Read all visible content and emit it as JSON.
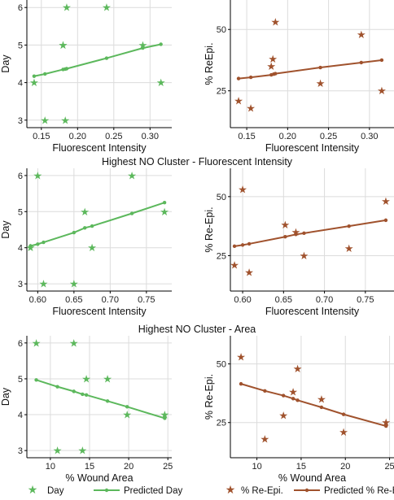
{
  "colors": {
    "green": "#5cb85c",
    "brown": "#a0522d",
    "grid": "#dcdcdc",
    "axis": "#000000"
  },
  "row_titles": [
    "",
    "Highest NO Cluster - Fluorescent Intensity",
    "Highest NO Cluster - Area"
  ],
  "legend": {
    "left": {
      "marker_label": "Day",
      "line_label": "Predicted Day"
    },
    "right": {
      "marker_label": "% Re-Epi.",
      "line_label": "Predicted % Re-Epi."
    }
  },
  "chart_data": [
    {
      "type": "scatter",
      "title": "",
      "xlabel": "Fluorescent Intensity",
      "ylabel": "Day",
      "xlim": [
        0.13,
        0.33
      ],
      "ylim": [
        2.8,
        6.2
      ],
      "xticks": [
        0.15,
        0.2,
        0.25,
        0.3
      ],
      "xtick_labels": [
        "0.15",
        "0.20",
        "0.25",
        "0.30"
      ],
      "yticks": [
        3,
        4,
        5,
        6
      ],
      "ytick_labels": [
        "3",
        "4",
        "5",
        "6"
      ],
      "marker": "star",
      "color": "green",
      "series": [
        {
          "kind": "points",
          "x": [
            0.14,
            0.155,
            0.18,
            0.183,
            0.185,
            0.24,
            0.29,
            0.315,
            0.18
          ],
          "y": [
            4,
            3,
            5,
            3,
            6,
            6,
            5,
            4,
            5
          ]
        },
        {
          "kind": "line",
          "x": [
            0.14,
            0.155,
            0.18,
            0.183,
            0.185,
            0.24,
            0.29,
            0.315
          ],
          "y": [
            4.17,
            4.23,
            4.35,
            4.36,
            4.37,
            4.65,
            4.92,
            5.02
          ]
        }
      ]
    },
    {
      "type": "scatter",
      "title": "",
      "xlabel": "Fluorescent Intensity",
      "ylabel": "% ReEpi.",
      "xlim": [
        0.13,
        0.33
      ],
      "ylim": [
        10,
        62
      ],
      "xticks": [
        0.15,
        0.2,
        0.25,
        0.3
      ],
      "xtick_labels": [
        "0.15",
        "0.20",
        "0.25",
        "0.30"
      ],
      "yticks": [
        25,
        50
      ],
      "ytick_labels": [
        "25",
        "50"
      ],
      "marker": "star",
      "color": "brown",
      "series": [
        {
          "kind": "points",
          "x": [
            0.14,
            0.155,
            0.18,
            0.182,
            0.185,
            0.24,
            0.29,
            0.315
          ],
          "y": [
            21,
            18,
            35,
            38,
            53,
            28,
            48,
            25
          ]
        },
        {
          "kind": "line",
          "x": [
            0.14,
            0.155,
            0.18,
            0.183,
            0.185,
            0.24,
            0.29,
            0.315
          ],
          "y": [
            30,
            30.5,
            31.5,
            31.8,
            32,
            34.5,
            36.5,
            37.5
          ]
        }
      ]
    },
    {
      "type": "scatter",
      "title": "",
      "xlabel": "Fluorescent Intensity",
      "ylabel": "Day",
      "xlim": [
        0.585,
        0.785
      ],
      "ylim": [
        2.8,
        6.2
      ],
      "xticks": [
        0.6,
        0.65,
        0.7,
        0.75
      ],
      "xtick_labels": [
        "0.60",
        "0.65",
        "0.70",
        "0.75"
      ],
      "yticks": [
        3,
        4,
        5,
        6
      ],
      "ytick_labels": [
        "3",
        "4",
        "5",
        "6"
      ],
      "marker": "star",
      "color": "green",
      "series": [
        {
          "kind": "points",
          "x": [
            0.59,
            0.6,
            0.608,
            0.65,
            0.665,
            0.675,
            0.73,
            0.775
          ],
          "y": [
            4,
            6,
            3,
            3,
            5,
            4,
            6,
            5
          ]
        },
        {
          "kind": "line",
          "x": [
            0.59,
            0.6,
            0.608,
            0.65,
            0.665,
            0.675,
            0.73,
            0.775
          ],
          "y": [
            4.05,
            4.1,
            4.15,
            4.42,
            4.55,
            4.6,
            4.95,
            5.25
          ]
        }
      ]
    },
    {
      "type": "scatter",
      "title": "",
      "xlabel": "Fluorescent Intensity",
      "ylabel": "% Re-Epi.",
      "xlim": [
        0.585,
        0.785
      ],
      "ylim": [
        10,
        62
      ],
      "xticks": [
        0.6,
        0.65,
        0.7,
        0.75
      ],
      "xtick_labels": [
        "0.60",
        "0.65",
        "0.70",
        "0.75"
      ],
      "yticks": [
        25,
        50
      ],
      "ytick_labels": [
        "25",
        "50"
      ],
      "marker": "star",
      "color": "brown",
      "series": [
        {
          "kind": "points",
          "x": [
            0.59,
            0.6,
            0.608,
            0.652,
            0.665,
            0.675,
            0.73,
            0.775
          ],
          "y": [
            21,
            53,
            18,
            38,
            35,
            25,
            28,
            48
          ]
        },
        {
          "kind": "line",
          "x": [
            0.59,
            0.6,
            0.608,
            0.652,
            0.665,
            0.675,
            0.73,
            0.775
          ],
          "y": [
            29,
            29.5,
            30,
            33,
            34,
            34.5,
            37.5,
            40
          ]
        }
      ]
    },
    {
      "type": "scatter",
      "title": "",
      "xlabel": "% Wound Area",
      "ylabel": "Day",
      "xlim": [
        7,
        25.5
      ],
      "ylim": [
        2.8,
        6.2
      ],
      "xticks": [
        10,
        15,
        20,
        25
      ],
      "xtick_labels": [
        "10",
        "15",
        "20",
        "25"
      ],
      "yticks": [
        3,
        4,
        5,
        6
      ],
      "ytick_labels": [
        "3",
        "4",
        "5",
        "6"
      ],
      "marker": "star",
      "color": "green",
      "series": [
        {
          "kind": "points",
          "x": [
            8.2,
            10.9,
            13.0,
            14.1,
            14.6,
            17.3,
            19.8,
            24.6
          ],
          "y": [
            6,
            3,
            6,
            3,
            5,
            5,
            4,
            4
          ]
        },
        {
          "kind": "line",
          "x": [
            8.2,
            10.9,
            13.0,
            14.1,
            14.6,
            17.3,
            19.8,
            24.6
          ],
          "y": [
            4.97,
            4.78,
            4.65,
            4.57,
            4.55,
            4.38,
            4.22,
            3.9
          ]
        }
      ]
    },
    {
      "type": "scatter",
      "title": "",
      "xlabel": "% Wound Area",
      "ylabel": "% Re-Epi.",
      "xlim": [
        7,
        25.5
      ],
      "ylim": [
        10,
        62
      ],
      "xticks": [
        10,
        15,
        20,
        25
      ],
      "xtick_labels": [
        "10",
        "15",
        "20",
        "25"
      ],
      "yticks": [
        25,
        50
      ],
      "ytick_labels": [
        "25",
        "50"
      ],
      "marker": "star",
      "color": "brown",
      "series": [
        {
          "kind": "points",
          "x": [
            8.2,
            10.9,
            13.0,
            14.1,
            14.6,
            17.3,
            19.8,
            24.6
          ],
          "y": [
            53,
            18,
            28,
            38,
            48,
            35,
            21,
            25
          ]
        },
        {
          "kind": "line",
          "x": [
            8.2,
            10.9,
            13.0,
            14.1,
            14.6,
            17.3,
            19.8,
            24.6
          ],
          "y": [
            41.5,
            38.5,
            36.5,
            35.2,
            34.5,
            31.5,
            28.5,
            23.5
          ]
        }
      ]
    }
  ]
}
